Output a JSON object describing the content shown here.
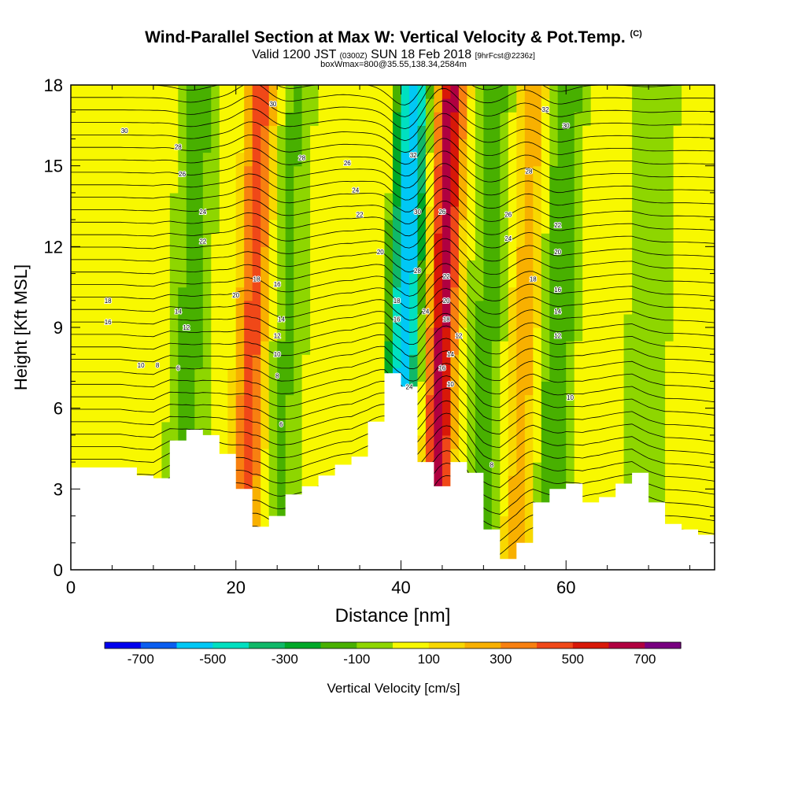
{
  "header": {
    "title": "Wind-Parallel Section at Max W: Vertical Velocity & Pot.Temp.",
    "copyright": "(C)",
    "valid_a": "Valid 1200 JST",
    "valid_zulu": "(0300Z)",
    "valid_b": "SUN 18 Feb 2018",
    "forecast": "[9hrFcst@2236z]",
    "box": "boxWmax=800@35.55,138.34,2584m"
  },
  "chart_data": {
    "type": "heatmap",
    "xlabel": "Distance [nm]",
    "ylabel": "Height [Kft MSL]",
    "xlim": [
      0,
      78
    ],
    "ylim": [
      0,
      18
    ],
    "x_ticks": [
      0,
      20,
      40,
      60
    ],
    "y_ticks": [
      0,
      3,
      6,
      9,
      12,
      15,
      18
    ],
    "colorbar": {
      "label": "Vertical Velocity [cm/s]",
      "ticks": [
        -700,
        -500,
        -300,
        -100,
        100,
        300,
        500,
        700
      ],
      "bins": [
        -800,
        -700,
        -600,
        -500,
        -400,
        -300,
        -200,
        -100,
        0,
        100,
        200,
        300,
        400,
        500,
        600,
        700,
        800
      ],
      "colors": [
        "#0000ee",
        "#0a5ef0",
        "#00c8f5",
        "#00e0c0",
        "#10b868",
        "#00a828",
        "#48b000",
        "#8ed600",
        "#f8f800",
        "#f8d800",
        "#f8b000",
        "#f88010",
        "#f04818",
        "#d81808",
        "#b00040",
        "#780080"
      ]
    },
    "terrain": {
      "x": [
        0,
        2,
        4,
        6,
        8,
        10,
        12,
        14,
        16,
        18,
        20,
        22,
        24,
        26,
        28,
        30,
        32,
        34,
        36,
        38,
        40,
        42,
        44,
        46,
        48,
        50,
        52,
        54,
        56,
        58,
        60,
        62,
        64,
        66,
        68,
        70,
        72,
        74,
        76,
        78
      ],
      "height": [
        3.8,
        3.8,
        3.8,
        3.8,
        3.5,
        3.4,
        4.8,
        5.2,
        5.0,
        4.3,
        3.0,
        1.6,
        2.0,
        2.8,
        3.1,
        3.5,
        3.9,
        4.2,
        5.5,
        7.3,
        6.8,
        4.0,
        3.1,
        4.0,
        3.6,
        1.5,
        0.4,
        1.0,
        2.5,
        3.0,
        3.2,
        2.5,
        2.7,
        3.2,
        3.6,
        2.5,
        1.7,
        1.5,
        1.3,
        1.0
      ]
    },
    "vertical_velocity_bands": [
      {
        "x": 14.5,
        "w": -150
      },
      {
        "x": 22.0,
        "w": 450
      },
      {
        "x": 26.0,
        "w": -120
      },
      {
        "x": 33.0,
        "w": 80
      },
      {
        "x": 40.5,
        "w": -600
      },
      {
        "x": 45.0,
        "w": 650
      },
      {
        "x": 50.5,
        "w": -150
      },
      {
        "x": 55.0,
        "w": 250
      },
      {
        "x": 59.0,
        "w": -200
      },
      {
        "x": 70.0,
        "w": -50
      }
    ],
    "theta_labels": [
      {
        "x": 6.5,
        "y": 16.3,
        "text": "30"
      },
      {
        "x": 13,
        "y": 15.7,
        "text": "28"
      },
      {
        "x": 13.5,
        "y": 14.7,
        "text": "26"
      },
      {
        "x": 16,
        "y": 13.3,
        "text": "24"
      },
      {
        "x": 16,
        "y": 12.2,
        "text": "22"
      },
      {
        "x": 4.5,
        "y": 10.0,
        "text": "18"
      },
      {
        "x": 4.5,
        "y": 9.2,
        "text": "16"
      },
      {
        "x": 13,
        "y": 9.6,
        "text": "14"
      },
      {
        "x": 14,
        "y": 9.0,
        "text": "12"
      },
      {
        "x": 8.5,
        "y": 7.6,
        "text": "10"
      },
      {
        "x": 10.5,
        "y": 7.6,
        "text": "8"
      },
      {
        "x": 13,
        "y": 7.5,
        "text": "6"
      },
      {
        "x": 24.5,
        "y": 17.3,
        "text": "30"
      },
      {
        "x": 28,
        "y": 15.3,
        "text": "28"
      },
      {
        "x": 33.5,
        "y": 15.1,
        "text": "26"
      },
      {
        "x": 34.5,
        "y": 14.1,
        "text": "24"
      },
      {
        "x": 35,
        "y": 13.2,
        "text": "22"
      },
      {
        "x": 37.5,
        "y": 11.8,
        "text": "20"
      },
      {
        "x": 22.5,
        "y": 10.8,
        "text": "18"
      },
      {
        "x": 20,
        "y": 10.2,
        "text": "20"
      },
      {
        "x": 25,
        "y": 10.6,
        "text": "16"
      },
      {
        "x": 25.5,
        "y": 9.3,
        "text": "14"
      },
      {
        "x": 25,
        "y": 8.7,
        "text": "12"
      },
      {
        "x": 25,
        "y": 8.0,
        "text": "10"
      },
      {
        "x": 25,
        "y": 7.2,
        "text": "8"
      },
      {
        "x": 25.5,
        "y": 5.4,
        "text": "6"
      },
      {
        "x": 41.5,
        "y": 15.4,
        "text": "32"
      },
      {
        "x": 42,
        "y": 13.3,
        "text": "30"
      },
      {
        "x": 42,
        "y": 11.1,
        "text": "28"
      },
      {
        "x": 39.5,
        "y": 10.0,
        "text": "18"
      },
      {
        "x": 39.5,
        "y": 9.3,
        "text": "16"
      },
      {
        "x": 43,
        "y": 9.6,
        "text": "24"
      },
      {
        "x": 41,
        "y": 6.8,
        "text": "24"
      },
      {
        "x": 45,
        "y": 13.3,
        "text": "26"
      },
      {
        "x": 45.5,
        "y": 10.9,
        "text": "22"
      },
      {
        "x": 45.5,
        "y": 10.0,
        "text": "20"
      },
      {
        "x": 45.5,
        "y": 9.3,
        "text": "18"
      },
      {
        "x": 47,
        "y": 8.7,
        "text": "12"
      },
      {
        "x": 46,
        "y": 8.0,
        "text": "14"
      },
      {
        "x": 45,
        "y": 7.5,
        "text": "16"
      },
      {
        "x": 46,
        "y": 6.9,
        "text": "10"
      },
      {
        "x": 51,
        "y": 3.9,
        "text": "8"
      },
      {
        "x": 57.5,
        "y": 17.1,
        "text": "32"
      },
      {
        "x": 60,
        "y": 16.5,
        "text": "30"
      },
      {
        "x": 55.5,
        "y": 14.8,
        "text": "28"
      },
      {
        "x": 53,
        "y": 13.2,
        "text": "26"
      },
      {
        "x": 53,
        "y": 12.3,
        "text": "24"
      },
      {
        "x": 59,
        "y": 12.8,
        "text": "22"
      },
      {
        "x": 59,
        "y": 11.8,
        "text": "20"
      },
      {
        "x": 56,
        "y": 10.8,
        "text": "18"
      },
      {
        "x": 59,
        "y": 10.4,
        "text": "16"
      },
      {
        "x": 59,
        "y": 9.6,
        "text": "14"
      },
      {
        "x": 59,
        "y": 8.7,
        "text": "12"
      },
      {
        "x": 60.5,
        "y": 6.4,
        "text": "10"
      }
    ]
  }
}
